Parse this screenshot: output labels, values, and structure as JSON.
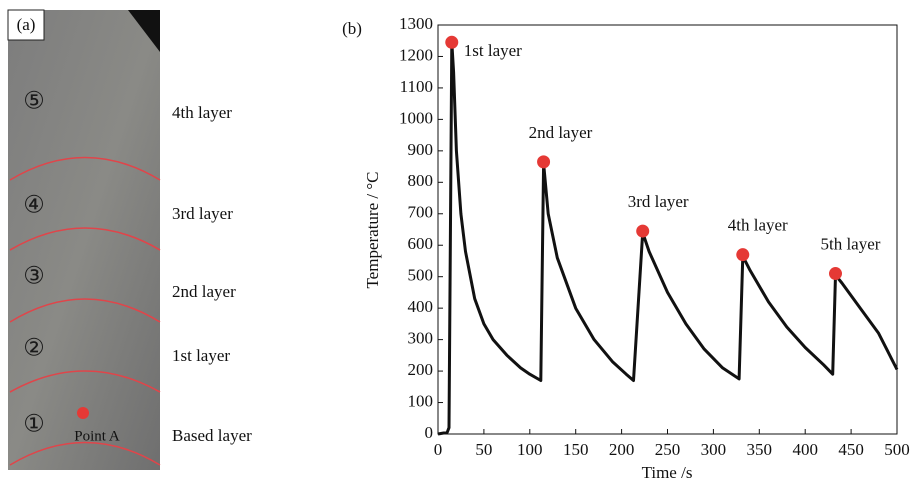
{
  "panel_a": {
    "label": "(a)",
    "numbers": [
      "⑤",
      "④",
      "③",
      "②",
      "①"
    ],
    "point": "Point A",
    "layers": [
      "4th layer",
      "3rd layer",
      "2nd layer",
      "1st layer",
      "Based layer"
    ]
  },
  "chart_data": {
    "type": "line",
    "panel_label": "(b)",
    "x_label": "Time /s",
    "y_label": "Temperature / °C",
    "x": [
      0,
      10,
      12,
      15,
      17,
      20,
      25,
      30,
      40,
      50,
      60,
      75,
      90,
      100,
      112,
      115,
      120,
      130,
      150,
      170,
      190,
      205,
      213,
      223,
      230,
      250,
      270,
      290,
      310,
      328,
      332,
      340,
      360,
      380,
      400,
      420,
      430,
      433,
      440,
      460,
      480,
      500
    ],
    "values": [
      0,
      5,
      20,
      1245,
      1150,
      900,
      700,
      580,
      430,
      350,
      300,
      250,
      210,
      190,
      170,
      860,
      700,
      560,
      400,
      300,
      230,
      190,
      170,
      640,
      580,
      450,
      350,
      270,
      210,
      175,
      565,
      520,
      420,
      340,
      275,
      220,
      190,
      505,
      480,
      400,
      320,
      205
    ],
    "color": "#111111",
    "peaks": {
      "x": [
        15,
        115,
        223,
        332,
        433
      ],
      "values": [
        1245,
        865,
        645,
        570,
        510
      ],
      "color": "#e53935",
      "labels": [
        "1st layer",
        "2nd layer",
        "3rd layer",
        "4th layer",
        "5th layer"
      ]
    },
    "xlim": [
      0,
      500
    ],
    "xticks": [
      0,
      50,
      100,
      150,
      200,
      250,
      300,
      350,
      400,
      450,
      500
    ],
    "ylim": [
      0,
      1300
    ],
    "yticks": [
      0,
      100,
      200,
      300,
      400,
      500,
      600,
      700,
      800,
      900,
      1000,
      1100,
      1200,
      1300
    ]
  }
}
